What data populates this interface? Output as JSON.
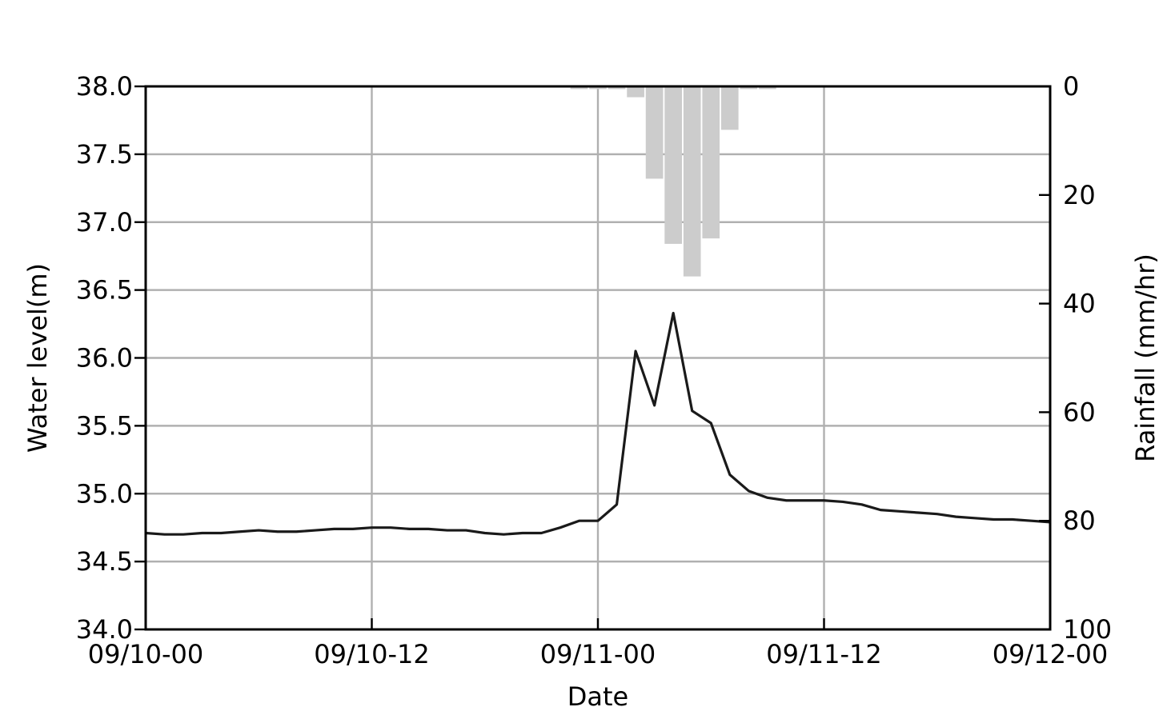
{
  "chart_data": {
    "type": "bar+line",
    "xlabel": "Date",
    "ylabel_left": "Water level(m)",
    "ylabel_right": "Rainfall (mm/hr)",
    "x_range": [
      "09/10-00",
      "09/12-00"
    ],
    "x_ticks": [
      "09/10-00",
      "09/10-12",
      "09/11-00",
      "09/11-12",
      "09/12-00"
    ],
    "y_left_range": [
      34.0,
      38.0
    ],
    "y_left_ticks": [
      "34.0",
      "34.5",
      "35.0",
      "35.5",
      "36.0",
      "36.5",
      "37.0",
      "37.5",
      "38.0"
    ],
    "y_right_range": [
      0,
      100
    ],
    "y_right_inverted": true,
    "y_right_ticks": [
      "0",
      "20",
      "40",
      "60",
      "80",
      "100"
    ],
    "grid": true,
    "colors": {
      "water_level_line": "#1a1a1a",
      "rainfall_bars": "#cccccc",
      "grid": "#b0b0b0",
      "axes": "#000000"
    },
    "water_level": {
      "type": "line",
      "x": [
        "09/10-00",
        "09/10-01",
        "09/10-02",
        "09/10-03",
        "09/10-04",
        "09/10-05",
        "09/10-06",
        "09/10-07",
        "09/10-08",
        "09/10-09",
        "09/10-10",
        "09/10-11",
        "09/10-12",
        "09/10-13",
        "09/10-14",
        "09/10-15",
        "09/10-16",
        "09/10-17",
        "09/10-18",
        "09/10-19",
        "09/10-20",
        "09/10-21",
        "09/10-22",
        "09/10-23",
        "09/11-00",
        "09/11-01",
        "09/11-02",
        "09/11-03",
        "09/11-04",
        "09/11-05",
        "09/11-06",
        "09/11-07",
        "09/11-08",
        "09/11-09",
        "09/11-10",
        "09/11-11",
        "09/11-12",
        "09/11-13",
        "09/11-14",
        "09/11-15",
        "09/11-16",
        "09/11-17",
        "09/11-18",
        "09/11-19",
        "09/11-20",
        "09/11-21",
        "09/11-22",
        "09/11-23",
        "09/12-00"
      ],
      "y": [
        34.71,
        34.7,
        34.7,
        34.71,
        34.71,
        34.72,
        34.73,
        34.72,
        34.72,
        34.73,
        34.74,
        34.74,
        34.75,
        34.75,
        34.74,
        34.74,
        34.73,
        34.73,
        34.71,
        34.7,
        34.71,
        34.71,
        34.75,
        34.8,
        34.8,
        34.92,
        36.05,
        35.65,
        36.33,
        35.61,
        35.52,
        35.14,
        35.02,
        34.97,
        34.95,
        34.95,
        34.95,
        34.94,
        34.92,
        34.88,
        34.87,
        34.86,
        34.85,
        34.83,
        34.82,
        34.81,
        34.81,
        34.8,
        34.79
      ]
    },
    "rainfall": {
      "type": "bar",
      "x": [
        "09/10-23",
        "09/11-00",
        "09/11-01",
        "09/11-02",
        "09/11-03",
        "09/11-04",
        "09/11-05",
        "09/11-06",
        "09/11-07",
        "09/11-08",
        "09/11-09"
      ],
      "values": [
        0.5,
        0.5,
        0.5,
        2,
        17,
        29,
        35,
        28,
        8,
        0.5,
        0.5
      ]
    }
  }
}
